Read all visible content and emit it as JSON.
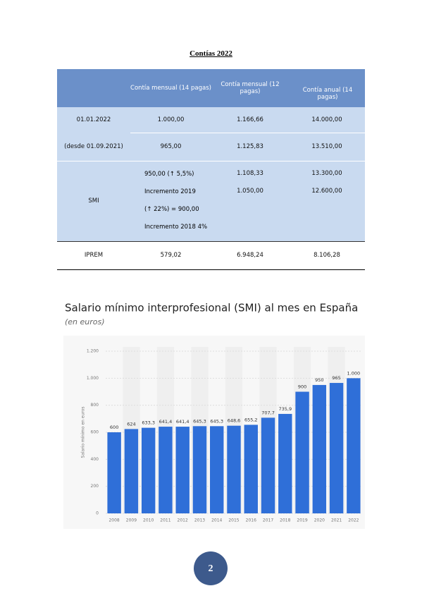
{
  "table": {
    "title": "Contías 2022",
    "header": [
      "Contía mensual (14 pagas)",
      "Contía mensual (12 pagas)",
      "Contía anual (14 pagas)"
    ],
    "rows": [
      [
        "01.01.2022",
        "1.000,00",
        "1.166,66",
        "14.000,00"
      ],
      [
        "(desde 01.09.2021)",
        "965,00",
        "1.125,83",
        "13.510,00"
      ]
    ],
    "smi": {
      "label": "SMI",
      "col1": [
        "950,00 (↑ 5,5%)",
        "Incremento 2019",
        "(↑ 22%) = 900,00",
        "Incremento 2018 4%"
      ],
      "col2": [
        "1.108,33",
        "1.050,00"
      ],
      "col3": [
        "13.300,00",
        "12.600,00"
      ]
    },
    "iprem": [
      "IPREM",
      "579,02",
      "6.948,24",
      "8.106,28"
    ]
  },
  "chart_data": {
    "type": "bar",
    "title": "Salario mínimo interprofesional (SMI) al mes en España",
    "subtitle": "(en euros)",
    "y_label": "Salario mínimo en euros",
    "categories": [
      "2008",
      "2009",
      "2010",
      "2011",
      "2012",
      "2013",
      "2014",
      "2015",
      "2016",
      "2017",
      "2018",
      "2019",
      "2020",
      "2021",
      "2022"
    ],
    "values": [
      600,
      624,
      633.3,
      641.4,
      641.4,
      645.3,
      645.3,
      648.6,
      655.2,
      707.7,
      735.9,
      900,
      950,
      965,
      1000
    ],
    "value_labels": [
      "600",
      "624",
      "633,3",
      "641,4",
      "641,4",
      "645,3",
      "645,3",
      "648,6",
      "655,2",
      "707,7",
      "735,9",
      "900",
      "950",
      "965",
      "1.000"
    ],
    "color": "#2f6fd8",
    "ylim": [
      0,
      1200
    ],
    "yticks": [
      0,
      200,
      400,
      600,
      800,
      {
        "value": 1000,
        "label": "1.000"
      },
      {
        "value": 1200,
        "label": "1.200"
      }
    ],
    "grid": true
  },
  "page_number": "2"
}
